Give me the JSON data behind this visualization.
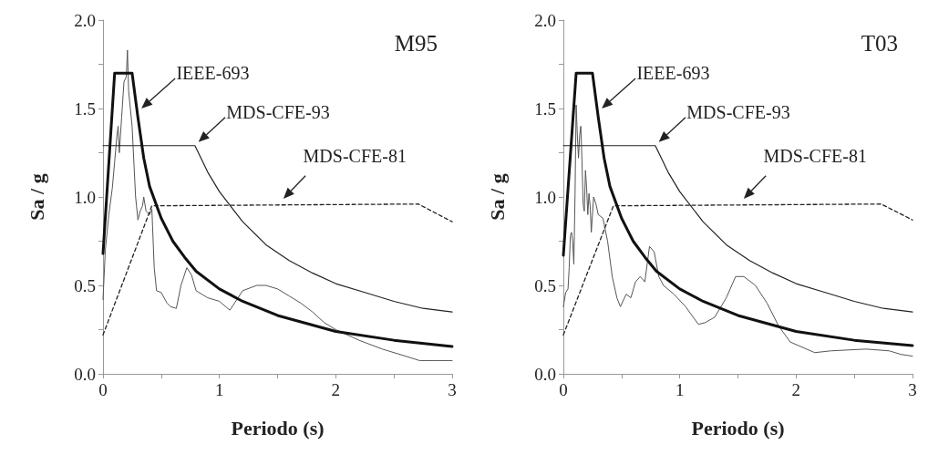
{
  "chart_data": [
    {
      "type": "line",
      "title": "M95",
      "xlabel": "Periodo (s)",
      "ylabel": "Sa / g",
      "xlim": [
        0,
        3
      ],
      "ylim": [
        0,
        2
      ],
      "xticks": [
        0,
        {
          "value": 0.5,
          "label": null
        },
        1,
        {
          "value": 1.5,
          "label": null
        },
        2,
        {
          "value": 2.5,
          "label": null
        },
        3
      ],
      "yticks": [
        {
          "value": 0,
          "label": "0.0"
        },
        {
          "value": 0.25,
          "label": null
        },
        {
          "value": 0.5,
          "label": "0.5"
        },
        {
          "value": 0.75,
          "label": null
        },
        {
          "value": 1,
          "label": "1.0"
        },
        {
          "value": 1.25,
          "label": null
        },
        {
          "value": 1.5,
          "label": "1.5"
        },
        {
          "value": 1.75,
          "label": null
        },
        {
          "value": 2,
          "label": "2.0"
        }
      ],
      "marker": "none",
      "series": [
        {
          "color": "#555555",
          "line_style": "solid",
          "x": [
            0,
            0.02,
            0.05,
            0.08,
            0.1,
            0.12,
            0.13,
            0.14,
            0.16,
            0.18,
            0.2,
            0.21,
            0.22,
            0.25,
            0.28,
            0.3,
            0.32,
            0.34,
            0.35,
            0.37,
            0.4,
            0.42,
            0.44,
            0.46,
            0.5,
            0.55,
            0.58,
            0.63,
            0.67,
            0.72,
            0.76,
            0.8,
            0.9,
            1.0,
            1.09,
            1.15,
            1.2,
            1.32,
            1.4,
            1.5,
            1.6,
            1.7,
            1.8,
            1.9,
            2.0,
            2.2,
            2.4,
            2.6,
            2.72,
            2.85,
            3.0
          ],
          "values": [
            0.42,
            0.7,
            0.9,
            1.05,
            1.2,
            1.35,
            1.4,
            1.25,
            1.45,
            1.65,
            1.68,
            1.83,
            1.6,
            1.4,
            1.0,
            0.87,
            0.92,
            0.95,
            1.0,
            0.92,
            0.9,
            0.93,
            0.6,
            0.47,
            0.46,
            0.4,
            0.38,
            0.37,
            0.5,
            0.6,
            0.56,
            0.47,
            0.43,
            0.41,
            0.36,
            0.42,
            0.47,
            0.5,
            0.5,
            0.48,
            0.44,
            0.4,
            0.35,
            0.29,
            0.25,
            0.19,
            0.14,
            0.1,
            0.075,
            0.075,
            0.075
          ]
        },
        {
          "name": "IEEE-693",
          "color": "#111111",
          "line_style": "solid",
          "x": [
            0,
            0.1,
            0.25,
            0.3,
            0.35,
            0.4,
            0.5,
            0.6,
            0.7,
            0.8,
            1.0,
            1.2,
            1.5,
            2.0,
            2.5,
            3.0
          ],
          "values": [
            0.68,
            1.7,
            1.7,
            1.45,
            1.22,
            1.06,
            0.88,
            0.75,
            0.66,
            0.58,
            0.48,
            0.41,
            0.33,
            0.24,
            0.19,
            0.155
          ]
        },
        {
          "name": "MDS-CFE-93",
          "color": "#222222",
          "line_style": "solid",
          "x": [
            0,
            0.79,
            0.9,
            1.0,
            1.2,
            1.4,
            1.6,
            1.8,
            2.0,
            2.25,
            2.5,
            2.75,
            3.0
          ],
          "values": [
            1.29,
            1.29,
            1.14,
            1.03,
            0.86,
            0.73,
            0.64,
            0.57,
            0.51,
            0.46,
            0.41,
            0.37,
            0.35
          ]
        },
        {
          "name": "MDS-CFE-81",
          "color": "#222222",
          "line_style": "dashed",
          "x": [
            0,
            0.42,
            2.71,
            3.0
          ],
          "values": [
            0.22,
            0.95,
            0.96,
            0.86
          ]
        }
      ]
    },
    {
      "type": "line",
      "title": "T03",
      "xlabel": "Periodo (s)",
      "ylabel": "Sa / g",
      "xlim": [
        0,
        3
      ],
      "ylim": [
        0,
        2
      ],
      "xticks": [
        0,
        {
          "value": 0.5,
          "label": null
        },
        1,
        {
          "value": 1.5,
          "label": null
        },
        2,
        {
          "value": 2.5,
          "label": null
        },
        3
      ],
      "yticks": [
        {
          "value": 0,
          "label": "0.0"
        },
        {
          "value": 0.25,
          "label": null
        },
        {
          "value": 0.5,
          "label": "0.5"
        },
        {
          "value": 0.75,
          "label": null
        },
        {
          "value": 1,
          "label": "1.0"
        },
        {
          "value": 1.25,
          "label": null
        },
        {
          "value": 1.5,
          "label": "1.5"
        },
        {
          "value": 1.75,
          "label": null
        },
        {
          "value": 2,
          "label": "2.0"
        }
      ],
      "marker": "none",
      "series": [
        {
          "color": "#555555",
          "line_style": "solid",
          "x": [
            0,
            0.02,
            0.04,
            0.05,
            0.06,
            0.07,
            0.08,
            0.09,
            0.1,
            0.11,
            0.12,
            0.13,
            0.14,
            0.15,
            0.16,
            0.17,
            0.18,
            0.19,
            0.2,
            0.21,
            0.22,
            0.23,
            0.24,
            0.26,
            0.28,
            0.3,
            0.34,
            0.38,
            0.42,
            0.46,
            0.49,
            0.54,
            0.58,
            0.62,
            0.66,
            0.7,
            0.74,
            0.78,
            0.82,
            0.86,
            0.95,
            1.05,
            1.16,
            1.22,
            1.3,
            1.4,
            1.48,
            1.55,
            1.65,
            1.75,
            1.85,
            1.95,
            2.16,
            2.3,
            2.6,
            2.8,
            2.9,
            3.0
          ],
          "values": [
            0.38,
            0.46,
            0.48,
            0.6,
            0.78,
            0.8,
            0.75,
            0.62,
            1.0,
            1.52,
            1.35,
            1.22,
            1.35,
            1.4,
            1.2,
            0.96,
            0.92,
            1.15,
            1.05,
            0.9,
            1.02,
            0.95,
            0.8,
            1.0,
            0.96,
            0.9,
            0.88,
            0.75,
            0.55,
            0.43,
            0.38,
            0.45,
            0.43,
            0.52,
            0.55,
            0.52,
            0.72,
            0.69,
            0.55,
            0.5,
            0.45,
            0.38,
            0.28,
            0.29,
            0.32,
            0.43,
            0.55,
            0.55,
            0.5,
            0.4,
            0.27,
            0.18,
            0.12,
            0.13,
            0.14,
            0.13,
            0.11,
            0.1
          ]
        },
        {
          "name": "IEEE-693",
          "color": "#111111",
          "line_style": "solid",
          "x": [
            0,
            0.11,
            0.25,
            0.3,
            0.35,
            0.4,
            0.5,
            0.6,
            0.7,
            0.8,
            1.0,
            1.2,
            1.5,
            2.0,
            2.5,
            3.0
          ],
          "values": [
            0.67,
            1.7,
            1.7,
            1.45,
            1.22,
            1.06,
            0.88,
            0.75,
            0.66,
            0.58,
            0.48,
            0.41,
            0.33,
            0.24,
            0.19,
            0.16
          ]
        },
        {
          "name": "MDS-CFE-93",
          "color": "#222222",
          "line_style": "solid",
          "x": [
            0,
            0.79,
            0.9,
            1.0,
            1.2,
            1.4,
            1.6,
            1.8,
            2.0,
            2.25,
            2.5,
            2.75,
            3.0
          ],
          "values": [
            1.29,
            1.29,
            1.14,
            1.03,
            0.86,
            0.73,
            0.64,
            0.57,
            0.51,
            0.46,
            0.41,
            0.37,
            0.35
          ]
        },
        {
          "name": "MDS-CFE-81",
          "color": "#222222",
          "line_style": "dashed",
          "x": [
            0,
            0.43,
            2.73,
            3.0
          ],
          "values": [
            0.22,
            0.95,
            0.96,
            0.87
          ]
        }
      ]
    }
  ]
}
